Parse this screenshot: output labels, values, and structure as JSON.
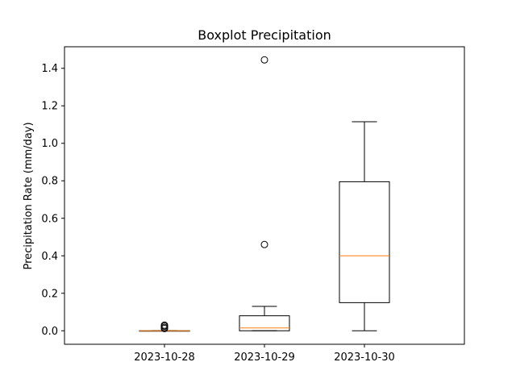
{
  "chart_data": {
    "type": "boxplot",
    "title": "Boxplot Precipitation",
    "xlabel": "",
    "ylabel": "Precipitation Rate (mm/day)",
    "ylim": [
      -0.072,
      1.515
    ],
    "yticks": [
      0.0,
      0.2,
      0.4,
      0.6,
      0.8,
      1.0,
      1.2,
      1.4
    ],
    "ytick_labels": [
      "0.0",
      "0.2",
      "0.4",
      "0.6",
      "0.8",
      "1.0",
      "1.2",
      "1.4"
    ],
    "grid": false,
    "categories": [
      "2023-10-28",
      "2023-10-29",
      "2023-10-30"
    ],
    "boxes": [
      {
        "whisker_low": 0.0,
        "q1": 0.0,
        "median": 0.0,
        "q3": 0.0,
        "whisker_high": 0.0,
        "outliers": [
          0.012,
          0.018,
          0.025,
          0.03
        ]
      },
      {
        "whisker_low": 0.0,
        "q1": 0.0,
        "median": 0.015,
        "q3": 0.08,
        "whisker_high": 0.13,
        "outliers": [
          0.46,
          1.445
        ]
      },
      {
        "whisker_low": 0.0,
        "q1": 0.15,
        "median": 0.4,
        "q3": 0.795,
        "whisker_high": 1.115,
        "outliers": []
      }
    ],
    "colors": {
      "box": "#000000",
      "median": "#ff7f0e",
      "frame": "#000000"
    }
  }
}
